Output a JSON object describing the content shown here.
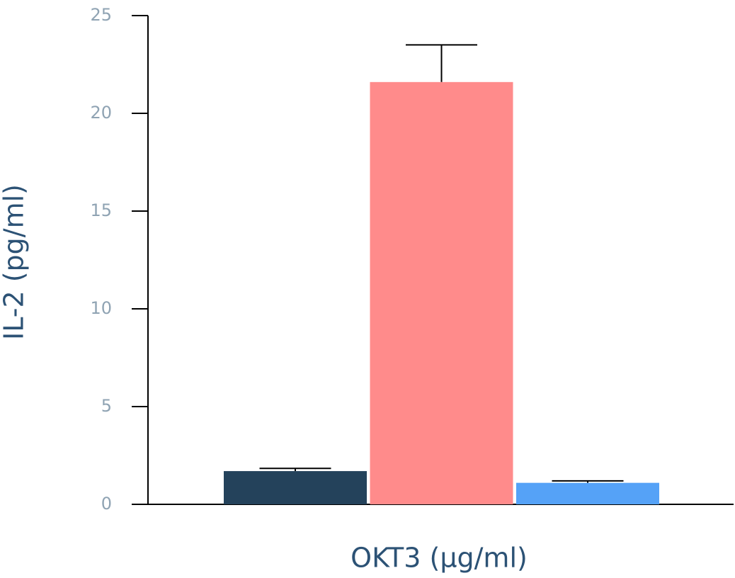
{
  "chart_data": {
    "type": "bar",
    "xlabel": "OKT3 (µg/ml)",
    "ylabel": "IL-2 (pg/ml)",
    "values": [
      1.7,
      21.6,
      1.1
    ],
    "errors": [
      0.14,
      1.9,
      0.1
    ],
    "colors": [
      "#24425b",
      "#ff8b8b",
      "#55a2f7"
    ],
    "ylim": [
      0,
      25
    ],
    "yticks": [
      0,
      5,
      10,
      15,
      20,
      25
    ]
  }
}
